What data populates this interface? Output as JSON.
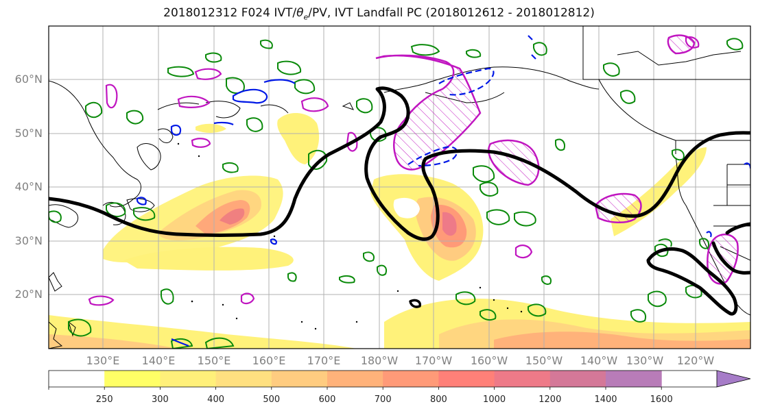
{
  "title": {
    "prefix": "2018012312 F024 IVT/",
    "theta": "θ",
    "theta_sub": "e",
    "suffix": "/PV, IVT Landfall PC (2018012612 - 2018012812)"
  },
  "map": {
    "lat_labels": [
      "60°N",
      "50°N",
      "40°N",
      "30°N",
      "20°N"
    ],
    "lon_labels": [
      "130°E",
      "140°E",
      "150°E",
      "160°E",
      "170°E",
      "180°W",
      "170°W",
      "160°W",
      "150°W",
      "140°W",
      "130°W",
      "120°W"
    ],
    "colors": {
      "coast": "#000000",
      "grid": "#b0b0b0",
      "pv_contour": "#000000",
      "theta_e_green": "#0a8a0a",
      "contour_blue": "#0018e6",
      "contour_magenta": "#c015c0"
    }
  },
  "colorbar": {
    "labels": [
      "250",
      "300",
      "400",
      "500",
      "600",
      "700",
      "800",
      "1000",
      "1200",
      "1400",
      "1600"
    ],
    "colors": [
      "#ffffff",
      "#ffff66",
      "#fff07a",
      "#ffe080",
      "#ffcc80",
      "#ffb27a",
      "#ff9a78",
      "#ff8078",
      "#ee7a88",
      "#d47898",
      "#b87cb8",
      "#a67cc8"
    ],
    "extend": "max"
  }
}
